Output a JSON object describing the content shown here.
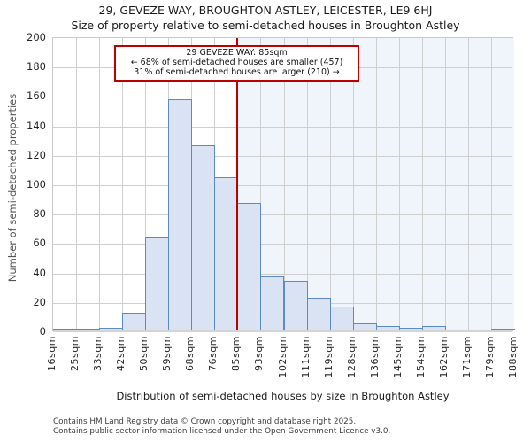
{
  "header": {
    "title": "29, GEVEZE WAY, BROUGHTON ASTLEY, LEICESTER, LE9 6HJ",
    "subtitle": "Size of property relative to semi-detached houses in Broughton Astley"
  },
  "chart_data": {
    "type": "bar",
    "title": "29, GEVEZE WAY, BROUGHTON ASTLEY, LEICESTER, LE9 6HJ",
    "subtitle": "Size of property relative to semi-detached houses in Broughton Astley",
    "categories": [
      "16sqm",
      "25sqm",
      "33sqm",
      "42sqm",
      "50sqm",
      "59sqm",
      "68sqm",
      "76sqm",
      "85sqm",
      "93sqm",
      "102sqm",
      "111sqm",
      "119sqm",
      "128sqm",
      "136sqm",
      "145sqm",
      "154sqm",
      "162sqm",
      "171sqm",
      "179sqm",
      "188sqm"
    ],
    "values": [
      1,
      1,
      2,
      12,
      63,
      157,
      126,
      104,
      87,
      37,
      34,
      22,
      16,
      5,
      3,
      2,
      3,
      0,
      0,
      1
    ],
    "xlabel": "Distribution of semi-detached houses by size in Broughton Astley",
    "ylabel": "Number of semi-detached properties",
    "ylim": [
      0,
      200
    ],
    "ytick_step": 20,
    "grid": true,
    "legend": "none",
    "marker": {
      "value_label": "85sqm",
      "bin_edge_index": 8,
      "line_color": "#bb0000",
      "shade_right_color": "#f0f4fb"
    },
    "bar_fill_color": "#d9e3f3",
    "bar_edge_color": "#5b8ac6",
    "gridline_color": "#cfcfcf"
  },
  "annotation": {
    "line1": "29 GEVEZE WAY: 85sqm",
    "line2": "← 68% of semi-detached houses are smaller (457)",
    "line3": "31% of semi-detached houses are larger (210) →"
  },
  "footer": {
    "line1": "Contains HM Land Registry data © Crown copyright and database right 2025.",
    "line2": "Contains public sector information licensed under the Open Government Licence v3.0."
  }
}
